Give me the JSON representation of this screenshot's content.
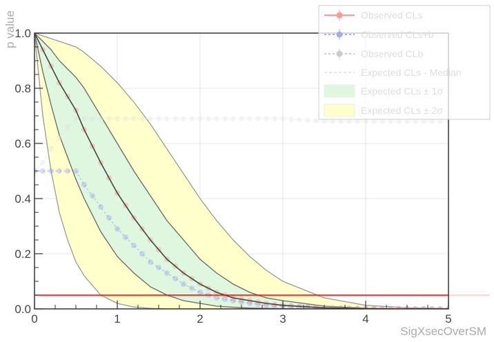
{
  "chart_data": {
    "type": "line",
    "xlabel": "SigXsecOverSM",
    "ylabel": "p value",
    "xlim": [
      0,
      5
    ],
    "ylim": [
      0,
      1
    ],
    "x_ticks": [
      "0",
      "1",
      "2",
      "3",
      "4",
      "5"
    ],
    "y_ticks": [
      "0.0",
      "0.2",
      "0.4",
      "0.6",
      "0.8",
      "1.0"
    ],
    "grid": true,
    "legend_position": "top-right",
    "legend": [
      "Observed CLs",
      "Observed CLs+b",
      "Observed CLb",
      "Expected CLs - Median",
      "Expected CLs ± 1σ",
      "Expected CLs ± 2σ"
    ],
    "reference_line": {
      "y": 0.05,
      "color": "#ff0000"
    },
    "x": [
      0,
      0.1,
      0.2,
      0.3,
      0.4,
      0.5,
      0.6,
      0.8,
      1.0,
      1.2,
      1.4,
      1.6,
      1.8,
      2.0,
      2.2,
      2.4,
      2.6,
      2.8,
      3.0,
      3.5,
      4.0,
      4.5,
      5.0
    ],
    "series": [
      {
        "name": "Observed CLs",
        "color": "#ff8888",
        "values": [
          1.0,
          0.94,
          0.88,
          0.82,
          0.77,
          0.72,
          0.65,
          0.53,
          0.42,
          0.33,
          0.25,
          0.18,
          0.13,
          0.09,
          0.06,
          0.04,
          0.03,
          0.02,
          0.013,
          0.004,
          0.001,
          0.0,
          0.0
        ]
      },
      {
        "name": "Observed CLs+b",
        "color": "#8888ee",
        "values": [
          0.5,
          0.5,
          0.5,
          0.5,
          0.5,
          0.5,
          0.45,
          0.37,
          0.29,
          0.23,
          0.17,
          0.13,
          0.09,
          0.06,
          0.04,
          0.03,
          0.02,
          0.014,
          0.009,
          0.003,
          0.001,
          0.0,
          0.0
        ]
      },
      {
        "name": "Observed CLb",
        "color": "#dddddd",
        "values": [
          0.5,
          0.53,
          0.58,
          0.62,
          0.66,
          0.69,
          0.69,
          0.69,
          0.69,
          0.69,
          0.69,
          0.69,
          0.69,
          0.69,
          0.69,
          0.69,
          0.69,
          0.69,
          0.69,
          0.68,
          0.68,
          0.68,
          0.68
        ]
      },
      {
        "name": "Expected CLs - Median",
        "color": "#444444",
        "values": [
          1.0,
          0.94,
          0.88,
          0.82,
          0.77,
          0.72,
          0.65,
          0.53,
          0.42,
          0.33,
          0.25,
          0.18,
          0.13,
          0.09,
          0.06,
          0.04,
          0.03,
          0.02,
          0.013,
          0.004,
          0.001,
          0.0,
          0.0
        ]
      }
    ],
    "bands": [
      {
        "name": "Expected CLs ± 2σ",
        "color": "#ffffcc",
        "edge": "#999999",
        "lower": [
          1.0,
          0.7,
          0.5,
          0.35,
          0.25,
          0.17,
          0.12,
          0.05,
          0.02,
          0.007,
          0.002,
          0.0,
          0.0,
          0.0,
          0.0,
          0.0,
          0.0,
          0.0,
          0.0,
          0.0,
          0.0,
          0.0,
          0.0
        ],
        "upper": [
          1.0,
          0.99,
          0.98,
          0.97,
          0.96,
          0.95,
          0.93,
          0.88,
          0.82,
          0.75,
          0.67,
          0.58,
          0.49,
          0.4,
          0.32,
          0.25,
          0.19,
          0.14,
          0.1,
          0.04,
          0.013,
          0.004,
          0.001
        ]
      },
      {
        "name": "Expected CLs ± 1σ",
        "color": "#dff7df",
        "edge": "#666666",
        "lower": [
          1.0,
          0.86,
          0.74,
          0.63,
          0.55,
          0.47,
          0.4,
          0.28,
          0.19,
          0.13,
          0.08,
          0.05,
          0.03,
          0.02,
          0.01,
          0.006,
          0.003,
          0.002,
          0.001,
          0.0,
          0.0,
          0.0,
          0.0
        ],
        "upper": [
          1.0,
          0.97,
          0.94,
          0.9,
          0.87,
          0.84,
          0.8,
          0.7,
          0.6,
          0.5,
          0.41,
          0.32,
          0.25,
          0.18,
          0.13,
          0.09,
          0.06,
          0.04,
          0.03,
          0.01,
          0.002,
          0.0,
          0.0
        ]
      }
    ]
  }
}
